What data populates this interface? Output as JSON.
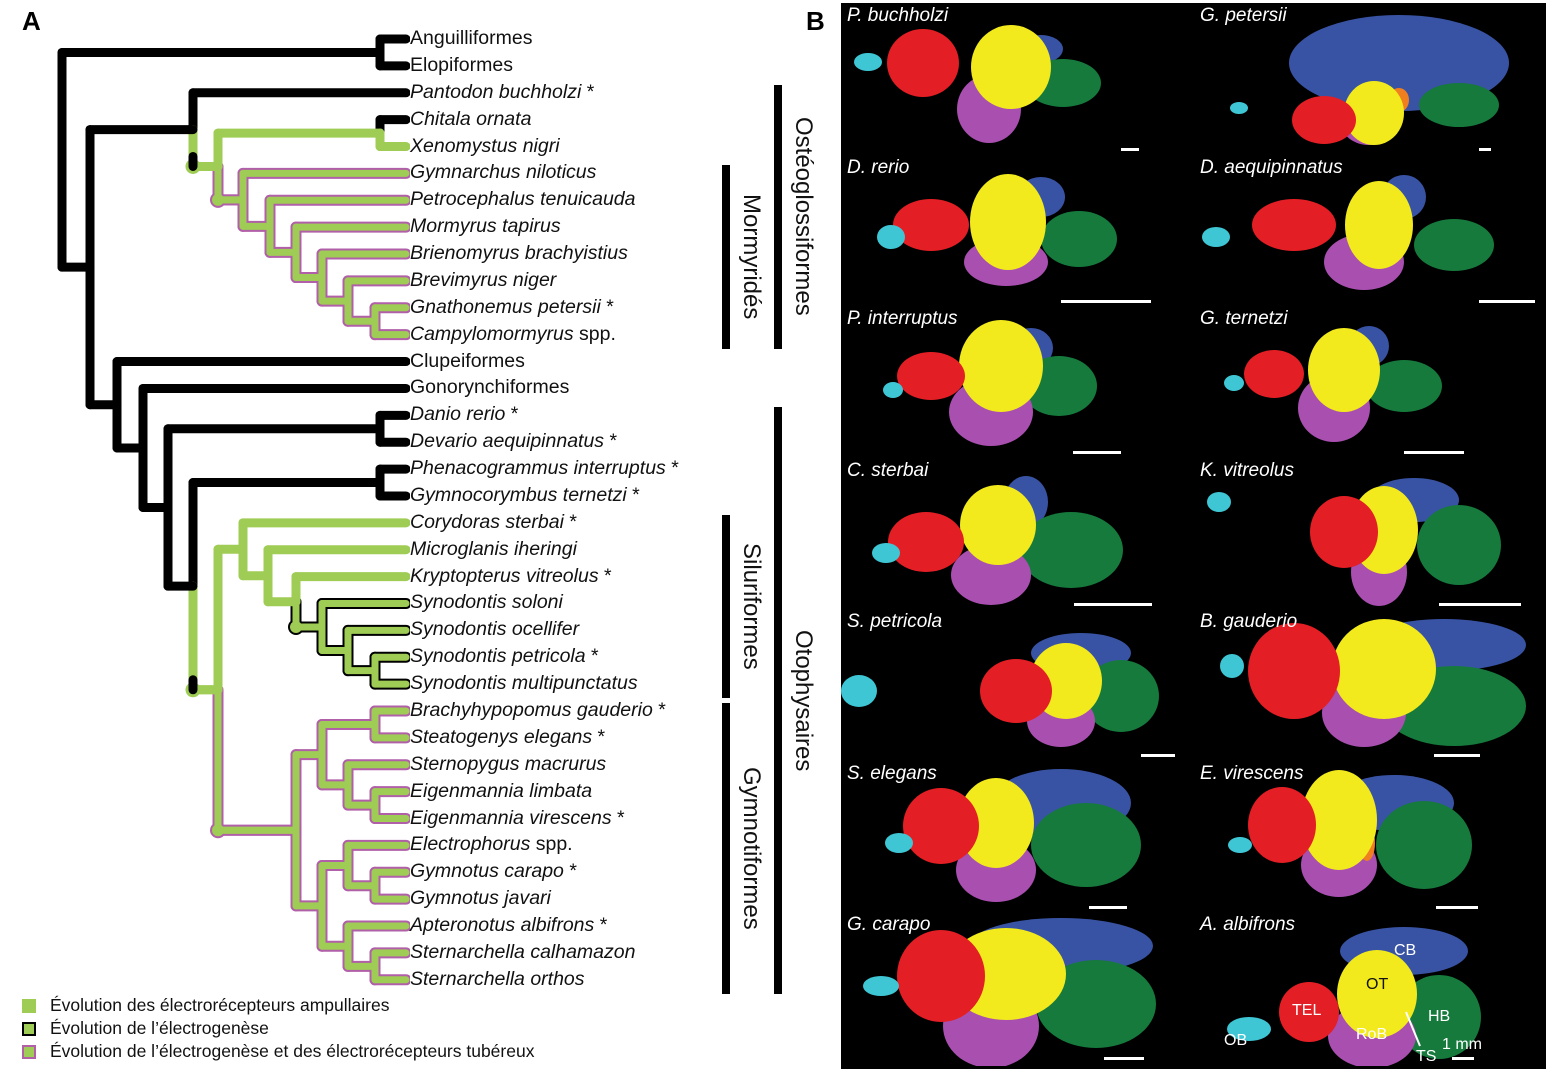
{
  "panels": {
    "a": "A",
    "b": "B"
  },
  "colors": {
    "ancestral": "#000000",
    "ampullary": "#9fcc55",
    "electrogenesis_outline": "#000000",
    "tuberous_outline": "#b05fa8",
    "background_b": "#000000",
    "telencephalon": "#e31e24",
    "optic_tectum": "#f2ea1c",
    "cerebellum": "#3953a4",
    "hindbrain": "#157a3c",
    "rest_of_brain": "#a84fb0",
    "olfactory_bulb": "#3ec6d4",
    "torus": "#f07f1f"
  },
  "tree": {
    "leaves": [
      {
        "name": "Anguilliformes",
        "italic": false,
        "star": false,
        "suffix": ""
      },
      {
        "name": "Elopiformes",
        "italic": false,
        "star": false,
        "suffix": ""
      },
      {
        "name": "Pantodon buchholzi",
        "italic": true,
        "star": true,
        "suffix": ""
      },
      {
        "name": "Chitala ornata",
        "italic": true,
        "star": false,
        "suffix": ""
      },
      {
        "name": "Xenomystus nigri",
        "italic": true,
        "star": false,
        "suffix": ""
      },
      {
        "name": "Gymnarchus niloticus",
        "italic": true,
        "star": false,
        "suffix": ""
      },
      {
        "name": "Petrocephalus tenuicauda",
        "italic": true,
        "star": false,
        "suffix": ""
      },
      {
        "name": "Mormyrus tapirus",
        "italic": true,
        "star": false,
        "suffix": ""
      },
      {
        "name": "Brienomyrus brachyistius",
        "italic": true,
        "star": false,
        "suffix": ""
      },
      {
        "name": "Brevimyrus niger",
        "italic": true,
        "star": false,
        "suffix": ""
      },
      {
        "name": "Gnathonemus petersii",
        "italic": true,
        "star": true,
        "suffix": ""
      },
      {
        "name": "Campylomormyrus",
        "italic": true,
        "star": false,
        "suffix": "spp."
      },
      {
        "name": "Clupeiformes",
        "italic": false,
        "star": false,
        "suffix": ""
      },
      {
        "name": "Gonorynchiformes",
        "italic": false,
        "star": false,
        "suffix": ""
      },
      {
        "name": "Danio rerio",
        "italic": true,
        "star": true,
        "suffix": ""
      },
      {
        "name": "Devario aequipinnatus",
        "italic": true,
        "star": true,
        "suffix": ""
      },
      {
        "name": "Phenacogrammus interruptus",
        "italic": true,
        "star": true,
        "suffix": ""
      },
      {
        "name": "Gymnocorymbus ternetzi",
        "italic": true,
        "star": true,
        "suffix": ""
      },
      {
        "name": "Corydoras sterbai",
        "italic": true,
        "star": true,
        "suffix": ""
      },
      {
        "name": "Microglanis iheringi",
        "italic": true,
        "star": false,
        "suffix": ""
      },
      {
        "name": "Kryptopterus vitreolus",
        "italic": true,
        "star": true,
        "suffix": ""
      },
      {
        "name": "Synodontis soloni",
        "italic": true,
        "star": false,
        "suffix": ""
      },
      {
        "name": "Synodontis ocellifer",
        "italic": true,
        "star": false,
        "suffix": ""
      },
      {
        "name": "Synodontis petricola",
        "italic": true,
        "star": true,
        "suffix": ""
      },
      {
        "name": "Synodontis multipunctatus",
        "italic": true,
        "star": false,
        "suffix": ""
      },
      {
        "name": "Brachyhypopomus gauderio",
        "italic": true,
        "star": true,
        "suffix": ""
      },
      {
        "name": "Steatogenys elegans",
        "italic": true,
        "star": true,
        "suffix": ""
      },
      {
        "name": "Sternopygus macrurus",
        "italic": true,
        "star": false,
        "suffix": ""
      },
      {
        "name": "Eigenmannia limbata",
        "italic": true,
        "star": false,
        "suffix": ""
      },
      {
        "name": "Eigenmannia virescens",
        "italic": true,
        "star": true,
        "suffix": ""
      },
      {
        "name": "Electrophorus",
        "italic": true,
        "star": false,
        "suffix": "spp."
      },
      {
        "name": "Gymnotus carapo",
        "italic": true,
        "star": true,
        "suffix": ""
      },
      {
        "name": "Gymnotus javari",
        "italic": true,
        "star": false,
        "suffix": ""
      },
      {
        "name": "Apteronotus albifrons",
        "italic": true,
        "star": true,
        "suffix": ""
      },
      {
        "name": "Sternarchella calhamazon",
        "italic": true,
        "star": false,
        "suffix": ""
      },
      {
        "name": "Sternarchella orthos",
        "italic": true,
        "star": false,
        "suffix": ""
      }
    ],
    "star_symbol": "*",
    "topology": "((Anguilliformes,Elopiformes),((Pantodon,((Chitala,Xenomystus),(Gymnarchus,(Petrocephalus,(Mormyrus,(Brienomyrus,(Brevimyrus,(Gnathonemus,Campylomormyrus)))))))),(Clupeiformes,(Gonorynchiformes,((Danio,Devario),((Phenacogrammus,Gymnocorymbus),((Corydoras,(Microglanis,(Kryptopterus,(S.soloni,(S.ocellifer,(S.petricola,S.multipunctatus))))))),(((Brachyhypopomus,Steatogenys),(Sternopygus,(E.limbata,E.virescens))),((Electrophorus,(G.carapo,G.javari)),(Apteronotus,(S.calhamazon,S.orthos)))))))))))",
    "clades": [
      {
        "name": "Ostéoglossiformes",
        "from_leaf": 2,
        "to_leaf": 11
      },
      {
        "name": "Mormyridés",
        "from_leaf": 5,
        "to_leaf": 11
      },
      {
        "name": "Otophysaires",
        "from_leaf": 14,
        "to_leaf": 35
      },
      {
        "name": "Siluriformes",
        "from_leaf": 18,
        "to_leaf": 24
      },
      {
        "name": "Gymnotiformes",
        "from_leaf": 25,
        "to_leaf": 35
      }
    ]
  },
  "legend": [
    {
      "label": "Évolution des électrorécepteurs ampullaires",
      "fill": "#9fcc55",
      "border": "#9fcc55"
    },
    {
      "label": "Évolution de l’électrogenèse",
      "fill": "#9fcc55",
      "border": "#000000"
    },
    {
      "label": "Évolution de l’électrogenèse et des électrorécepteurs tubéreux",
      "fill": "#9fcc55",
      "border": "#b05fa8"
    }
  ],
  "brains": [
    {
      "name": "P. buchholzi",
      "variant": "pb"
    },
    {
      "name": "G. petersii",
      "variant": "gp"
    },
    {
      "name": "D. rerio",
      "variant": "dr"
    },
    {
      "name": "D. aequipinnatus",
      "variant": "da"
    },
    {
      "name": "P. interruptus",
      "variant": "pi"
    },
    {
      "name": "G. ternetzi",
      "variant": "gt"
    },
    {
      "name": "C. sterbai",
      "variant": "cs"
    },
    {
      "name": "K. vitreolus",
      "variant": "kv"
    },
    {
      "name": "S. petricola",
      "variant": "sp"
    },
    {
      "name": "B. gauderio",
      "variant": "bg"
    },
    {
      "name": "S. elegans",
      "variant": "se"
    },
    {
      "name": "E. virescens",
      "variant": "ev"
    },
    {
      "name": "G. carapo",
      "variant": "gc"
    },
    {
      "name": "A. albifrons",
      "variant": "aa"
    }
  ],
  "region_labels": {
    "cb": "CB",
    "ot": "OT",
    "tel": "TEL",
    "hb": "HB",
    "rob": "RoB",
    "ob": "OB",
    "ts": "TS"
  },
  "scale_bar_label": "1 mm"
}
